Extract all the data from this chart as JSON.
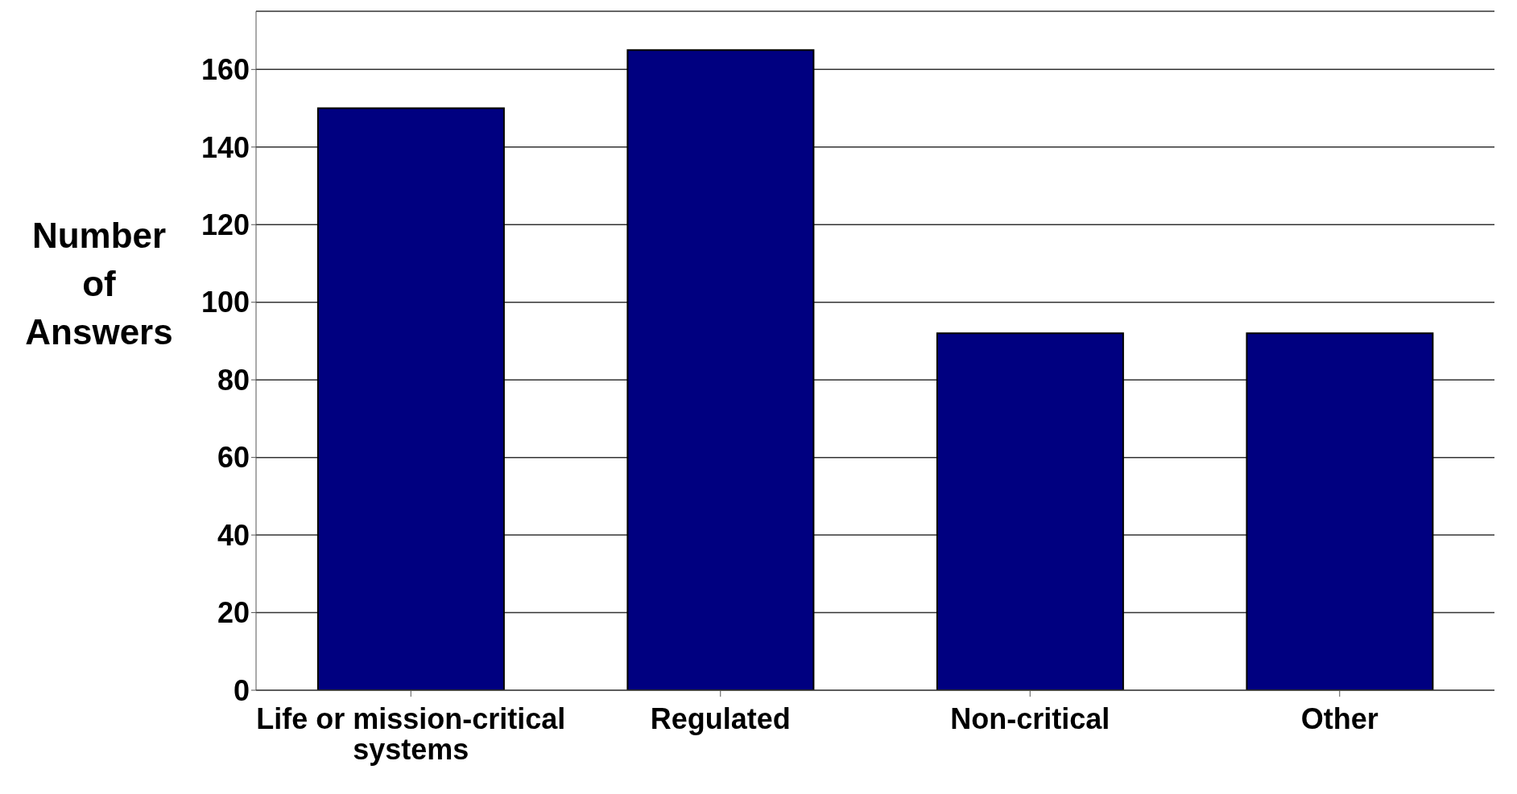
{
  "chart_data": {
    "type": "bar",
    "ylabel": "Number of Answers",
    "categories": [
      "Life or mission-critical systems",
      "Regulated",
      "Non-critical",
      "Other"
    ],
    "values": [
      150,
      165,
      92,
      92
    ],
    "color": "#000080",
    "ylim": [
      0,
      175
    ],
    "yticks": [
      0,
      20,
      40,
      60,
      80,
      100,
      120,
      140,
      160
    ],
    "grid": "y"
  }
}
